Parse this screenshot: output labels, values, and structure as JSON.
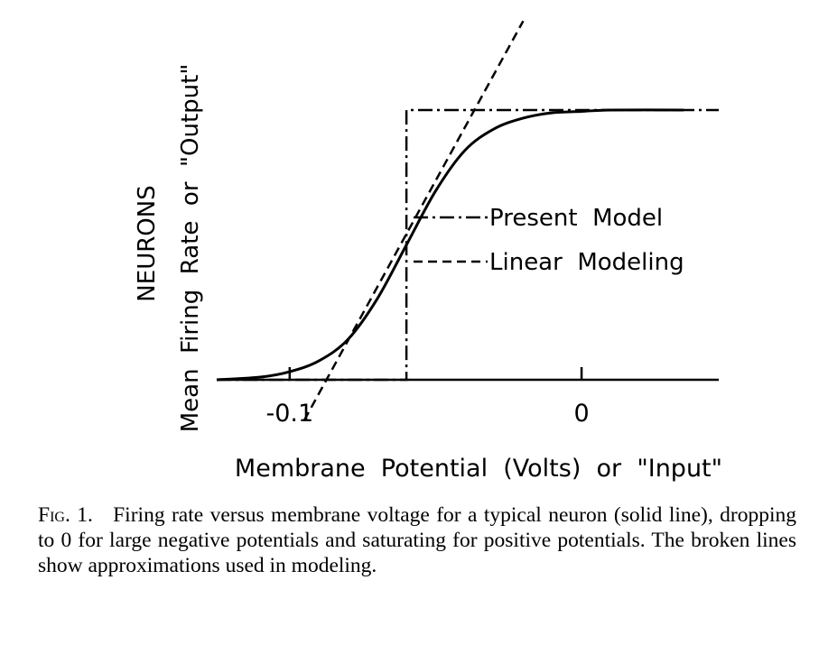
{
  "figure": {
    "ylabel_top": "NEURONS",
    "ylabel_main": "Mean  Firing  Rate  or  \"Output\"",
    "xlabel": "Membrane  Potential  (Volts)  or  \"Input\"",
    "legend": [
      {
        "label": "Present  Model",
        "style": "dash-dot"
      },
      {
        "label": "Linear  Modeling",
        "style": "dashed"
      }
    ]
  },
  "chart_data": {
    "type": "line",
    "title": "",
    "xlabel": "Membrane Potential (Volts) or \"Input\"",
    "ylabel": "Mean Firing Rate or \"Output\"",
    "xlim": [
      -0.125,
      0.047
    ],
    "ylim": [
      0,
      1
    ],
    "x_ticks": [
      {
        "value": -0.1,
        "label": "-0.1"
      },
      {
        "value": 0,
        "label": "0"
      }
    ],
    "grid": false,
    "legend_position": "center-right",
    "series": [
      {
        "name": "",
        "style": "solid",
        "points": [
          [
            -0.125,
            0.0
          ],
          [
            -0.11,
            0.01
          ],
          [
            -0.1,
            0.03
          ],
          [
            -0.09,
            0.07
          ],
          [
            -0.08,
            0.15
          ],
          [
            -0.07,
            0.3
          ],
          [
            -0.06,
            0.5
          ],
          [
            -0.05,
            0.7
          ],
          [
            -0.04,
            0.85
          ],
          [
            -0.03,
            0.93
          ],
          [
            -0.02,
            0.97
          ],
          [
            -0.01,
            0.99
          ],
          [
            0.0,
            0.995
          ],
          [
            0.01,
            1.0
          ],
          [
            0.035,
            1.0
          ]
        ]
      },
      {
        "name": "Present  Model",
        "style": "dash-dot",
        "points": [
          [
            -0.125,
            0.0
          ],
          [
            -0.06,
            0.0
          ],
          [
            -0.06,
            1.0
          ],
          [
            0.047,
            1.0
          ]
        ]
      },
      {
        "name": "Linear  Modeling",
        "style": "dashed",
        "points": [
          [
            -0.095,
            -0.15
          ],
          [
            -0.02,
            1.33
          ]
        ]
      }
    ]
  },
  "caption": {
    "label": "Fig. 1.",
    "text": "Firing rate versus membrane voltage for a typical neuron (solid line), dropping to 0 for large negative potentials and saturating for positive potentials. The broken lines show approximations used in modeling."
  }
}
